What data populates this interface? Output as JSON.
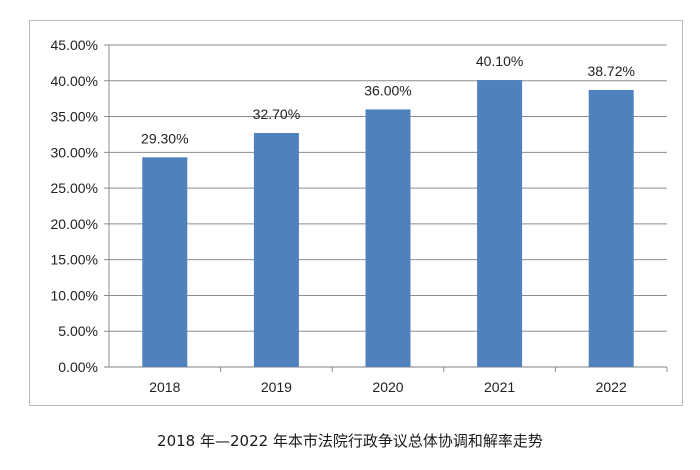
{
  "chart_data": {
    "type": "bar",
    "categories": [
      "2018",
      "2019",
      "2020",
      "2021",
      "2022"
    ],
    "values": [
      29.3,
      32.7,
      36.0,
      40.1,
      38.72
    ],
    "data_labels": [
      "29.30%",
      "32.70%",
      "36.00%",
      "40.10%",
      "38.72%"
    ],
    "y_ticks": [
      "0.00%",
      "5.00%",
      "10.00%",
      "15.00%",
      "20.00%",
      "25.00%",
      "30.00%",
      "35.00%",
      "40.00%",
      "45.00%"
    ],
    "ylim": [
      0,
      45
    ],
    "grid": true,
    "legend": "none",
    "bar_color": "#4f81bd",
    "title": "2018 年—2022 年本市法院行政争议总体协调和解率走势",
    "xlabel": "",
    "ylabel": ""
  }
}
